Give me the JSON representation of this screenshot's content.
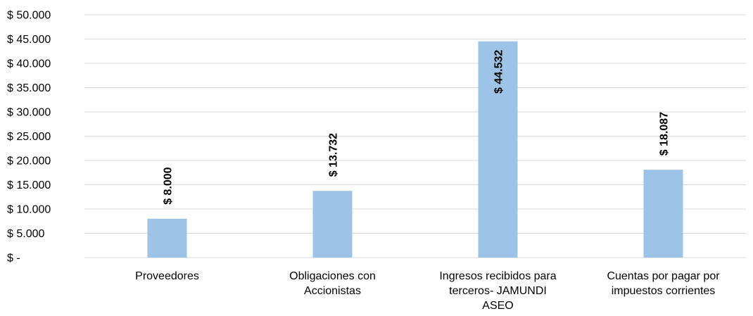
{
  "chart_data": {
    "type": "bar",
    "categories": [
      [
        "Proveedores"
      ],
      [
        "Obligaciones con",
        "Accionistas"
      ],
      [
        "Ingresos recibidos para",
        "terceros- JAMUNDI",
        "ASEO"
      ],
      [
        "Cuentas por pagar por",
        "impuestos corrientes"
      ]
    ],
    "values": [
      8000,
      13732,
      44532,
      18087
    ],
    "data_labels": [
      "$ 8.000",
      "$ 13.732",
      "$ 44.532",
      "$ 18.087"
    ],
    "ylim": [
      0,
      50000
    ],
    "yticks": [
      0,
      5000,
      10000,
      15000,
      20000,
      25000,
      30000,
      35000,
      40000,
      45000,
      50000
    ],
    "ytick_labels": [
      "$ -",
      "$ 5.000",
      "$ 10.000",
      "$ 15.000",
      "$ 20.000",
      "$ 25.000",
      "$ 30.000",
      "$ 35.000",
      "$ 40.000",
      "$ 45.000",
      "$ 50.000"
    ],
    "grid": true,
    "bar_color": "#9dc3e6",
    "gridline_color": "#d9d9d9"
  }
}
